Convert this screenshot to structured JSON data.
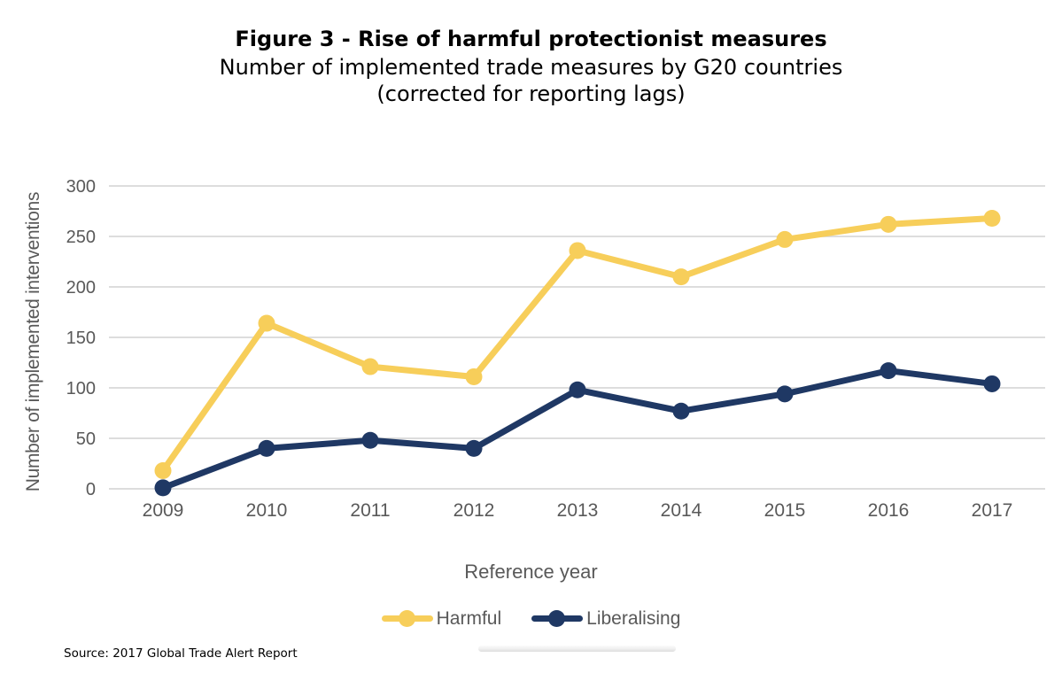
{
  "header": {
    "title": "Figure 3 - Rise of harmful protectionist measures",
    "subtitle_line1": "Number of implemented trade measures by G20 countries",
    "subtitle_line2": "(corrected for reporting lags)"
  },
  "chart_data": {
    "type": "line",
    "x": [
      "2009",
      "2010",
      "2011",
      "2012",
      "2013",
      "2014",
      "2015",
      "2016",
      "2017"
    ],
    "series": [
      {
        "name": "Harmful",
        "color": "#F7CE5A",
        "values": [
          18,
          164,
          121,
          111,
          236,
          210,
          247,
          262,
          268
        ]
      },
      {
        "name": "Liberalising",
        "color": "#1F3864",
        "values": [
          1,
          40,
          48,
          40,
          98,
          77,
          94,
          117,
          104
        ]
      }
    ],
    "xlabel": "Reference year",
    "ylabel": "Number of implemented interventions",
    "ylim": [
      0,
      300
    ],
    "yticks": [
      0,
      50,
      100,
      150,
      200,
      250,
      300
    ],
    "grid": "horizontal-only",
    "legend_position": "bottom"
  },
  "colors": {
    "grid": "#D8D8D8",
    "axis_text": "#595959",
    "title_text": "#000000"
  },
  "footer": {
    "source": "Source: 2017 Global Trade Alert Report"
  }
}
